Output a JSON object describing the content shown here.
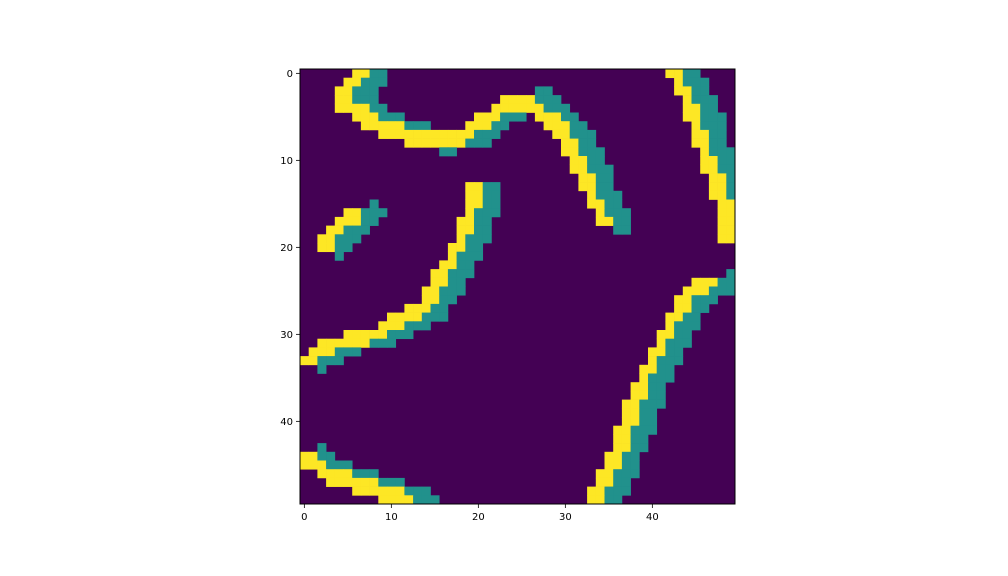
{
  "chart_data": {
    "type": "heatmap",
    "title": "",
    "xlabel": "",
    "ylabel": "",
    "rows": 50,
    "cols": 50,
    "xlim": [
      -0.5,
      49.5
    ],
    "ylim": [
      49.5,
      -0.5
    ],
    "xticks": [
      0,
      10,
      20,
      30,
      40
    ],
    "yticks": [
      0,
      10,
      20,
      30,
      40
    ],
    "grid": false,
    "colormap": {
      "0": "#440154",
      "1": "#21918c",
      "2": "#fde725"
    },
    "bands": [
      [
        [
          0,
          6.5
        ],
        [
          3,
          4.0
        ],
        [
          6,
          8.5
        ],
        [
          8,
          14.5
        ],
        [
          7,
          18.5
        ],
        [
          4,
          22.5
        ],
        [
          3,
          25.5
        ],
        [
          6,
          29.0
        ],
        [
          9,
          31.0
        ],
        [
          13,
          32.5
        ],
        [
          17,
          34.5
        ]
      ],
      [
        [
          16,
          6.0
        ],
        [
          18,
          3.5
        ],
        [
          20,
          2.0
        ]
      ],
      [
        [
          13.5,
          19.5
        ],
        [
          18,
          18.5
        ],
        [
          23,
          16.0
        ],
        [
          27,
          13.5
        ],
        [
          30,
          8.0
        ],
        [
          31,
          3.5
        ],
        [
          33,
          0.0
        ]
      ],
      [
        [
          0,
          42.5
        ],
        [
          4,
          44.5
        ],
        [
          9,
          46.0
        ],
        [
          13,
          47.5
        ],
        [
          16,
          48.5
        ],
        [
          19,
          48.5
        ]
      ],
      [
        [
          24,
          47.0
        ],
        [
          25,
          44.5
        ],
        [
          28,
          42.5
        ],
        [
          31,
          41.0
        ],
        [
          36,
          38.5
        ],
        [
          42,
          36.5
        ],
        [
          47,
          34.5
        ],
        [
          50,
          32.5
        ]
      ],
      [
        [
          44,
          0.0
        ],
        [
          46,
          2.5
        ],
        [
          47,
          5.5
        ],
        [
          48,
          8.5
        ],
        [
          49,
          12.0
        ]
      ]
    ],
    "band_offset_teal": 2,
    "band_width": 1.0
  }
}
